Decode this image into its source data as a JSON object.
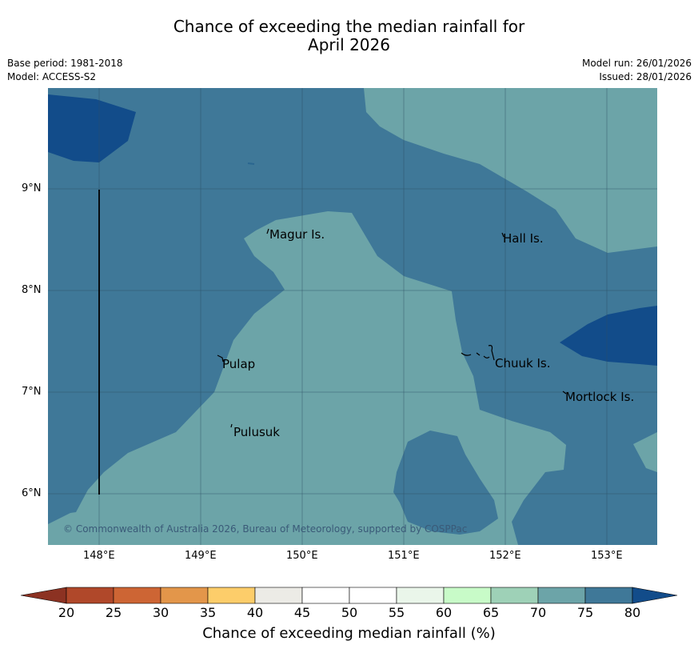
{
  "header": {
    "title_line1": "Chance of exceeding the median rainfall for",
    "title_line2": "April 2026",
    "base_period": "Base period: 1981-2018",
    "model": "Model: ACCESS-S2",
    "model_run": "Model run: 26/01/2026",
    "issued": "Issued: 28/01/2026"
  },
  "map": {
    "latitude_labels": [
      "9°N",
      "8°N",
      "7°N",
      "6°N"
    ],
    "longitude_labels": [
      "148°E",
      "149°E",
      "150°E",
      "151°E",
      "152°E",
      "153°E"
    ],
    "places": [
      "Magur Is.",
      "Hall Is.",
      "Pulap",
      "Chuuk Is.",
      "Mortlock Is.",
      "Pulusuk"
    ],
    "copyright": "© Commonwealth of Australia 2026, Bureau of Meteorology, supported by COSPPac",
    "colors": {
      "p70_75": "#6ca4a8",
      "p75_80": "#3f7898",
      "p80_plus": "#124c8a"
    }
  },
  "colorbar": {
    "title": "Chance of exceeding median rainfall (%)",
    "ticks": [
      "20",
      "25",
      "30",
      "35",
      "40",
      "45",
      "50",
      "55",
      "60",
      "65",
      "70",
      "75",
      "80"
    ],
    "colors": [
      "#b0482a",
      "#cd6534",
      "#e3964a",
      "#fdcd6a",
      "#ecebe6",
      "#ffffff",
      "#ffffff",
      "#eaf6ea",
      "#c8fbc8",
      "#9ed1b7",
      "#6ca4a8",
      "#3f7898"
    ],
    "under_color": "#8c3222",
    "over_color": "#124c8a"
  }
}
